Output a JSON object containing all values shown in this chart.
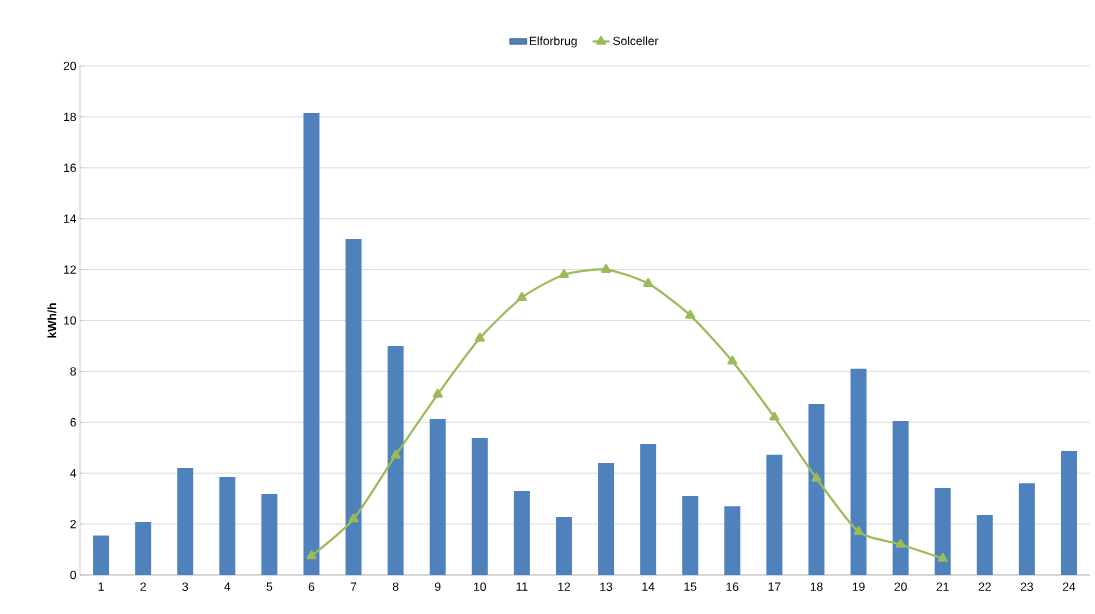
{
  "chart_data": {
    "type": "bar",
    "ylabel": "kWh/h",
    "categories": [
      "1",
      "2",
      "3",
      "4",
      "5",
      "6",
      "7",
      "8",
      "9",
      "10",
      "11",
      "12",
      "13",
      "14",
      "15",
      "16",
      "17",
      "18",
      "19",
      "20",
      "21",
      "22",
      "23",
      "24"
    ],
    "series": [
      {
        "name": "Elforbrug",
        "color": "#4f81bd",
        "values": [
          1.55,
          2.08,
          4.2,
          3.85,
          3.18,
          18.15,
          13.2,
          9.0,
          6.13,
          5.38,
          3.3,
          2.28,
          4.4,
          5.15,
          3.1,
          2.7,
          4.72,
          6.72,
          8.1,
          6.05,
          3.42,
          2.36,
          3.6,
          4.87
        ]
      },
      {
        "name": "Solceller",
        "type": "line",
        "color": "#9bbb59",
        "marker": "triangle",
        "line_style": "solid",
        "values": [
          null,
          null,
          null,
          null,
          null,
          0.75,
          2.2,
          4.7,
          7.1,
          9.3,
          10.9,
          11.8,
          12.0,
          11.45,
          10.2,
          8.4,
          6.2,
          3.8,
          1.7,
          1.2,
          0.65,
          null,
          null,
          null
        ]
      }
    ],
    "ylim": [
      0,
      20
    ],
    "yticks": [
      0,
      2,
      4,
      6,
      8,
      10,
      12,
      14,
      16,
      18,
      20
    ],
    "grid": "y",
    "legend": "top"
  }
}
